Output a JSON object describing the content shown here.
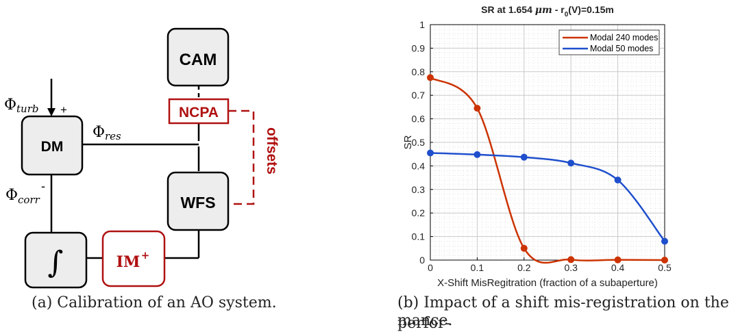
{
  "diagram": {
    "blocks": {
      "cam": "CAM",
      "ncpa": "NCPA",
      "dm": "DM",
      "wfs": "WFS",
      "integrator": "∫",
      "im": "IM",
      "im_sup": "+"
    },
    "labels": {
      "phi": "Φ",
      "turb_sub": "turb",
      "res_sub": "res",
      "corr_sub": "corr",
      "plus": "+",
      "minus": "-",
      "offsets": "offsets"
    },
    "colors": {
      "accent": "#b01010",
      "block_fill": "#ededed",
      "line": "#000000"
    }
  },
  "captions": {
    "a": "(a) Calibration of an AO system.",
    "b_line1": "(b) Impact of a shift mis-registration on the perfor-",
    "b_line2": "mance."
  },
  "chart_data": {
    "type": "line",
    "title_main": "SR at 1.654 ",
    "title_unit": "μm",
    "title_sep": "  -  r",
    "title_sub": "0",
    "title_tail": "(V)=0.15m",
    "xlabel": "X-Shift MisRegitration (fraction of a subaperture)",
    "ylabel": "SR",
    "xlim": [
      0,
      0.5
    ],
    "ylim": [
      0,
      1
    ],
    "xticks": [
      "0",
      "0.1",
      "0.2",
      "0.3",
      "0.4",
      "0.5"
    ],
    "yticks": [
      "0",
      "0.1",
      "0.2",
      "0.3",
      "0.4",
      "0.5",
      "0.6",
      "0.7",
      "0.8",
      "0.9",
      "1"
    ],
    "grid": true,
    "legend_position": "top-right",
    "series": [
      {
        "name": "Modal 240 modes",
        "color": "#cc3300",
        "x": [
          0,
          0.1,
          0.2,
          0.3,
          0.4,
          0.5
        ],
        "y": [
          0.775,
          0.645,
          0.05,
          0.002,
          0.001,
          0.0
        ]
      },
      {
        "name": "Modal 50 modes",
        "color": "#1f4fcc",
        "x": [
          0,
          0.1,
          0.2,
          0.3,
          0.4,
          0.5
        ],
        "y": [
          0.455,
          0.448,
          0.437,
          0.412,
          0.34,
          0.08
        ]
      }
    ]
  }
}
